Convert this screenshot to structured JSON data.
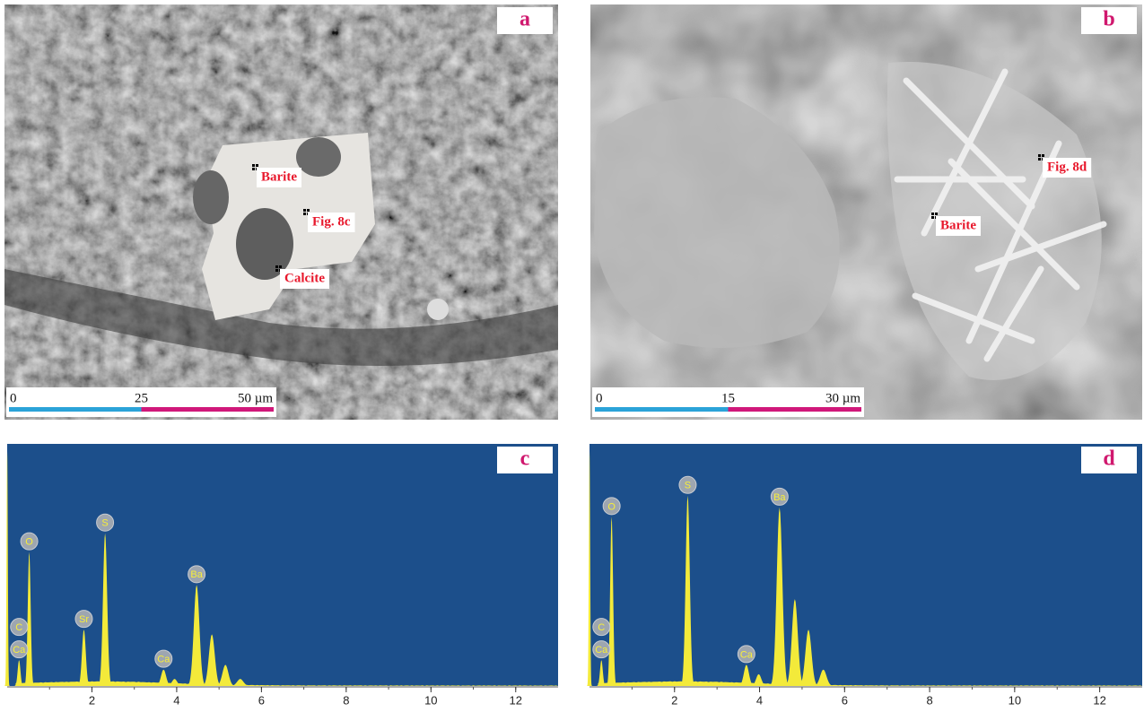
{
  "panels": [
    {
      "label": "a",
      "scale_bar": [
        "0",
        "25",
        "50 µm"
      ],
      "annotations": [
        "Barite",
        "Fig. 8c",
        "Calcite"
      ]
    },
    {
      "label": "b",
      "scale_bar": [
        "0",
        "15",
        "30 µm"
      ],
      "annotations": [
        "Fig. 8d",
        "Barite"
      ]
    }
  ],
  "chart_data": [
    {
      "type": "spectrum",
      "label": "c",
      "color": "#f3ea3a",
      "background": "#1c4f8b",
      "xlim": [
        0,
        13
      ],
      "xticks": [
        2,
        4,
        6,
        8,
        10,
        12
      ],
      "ylim": [
        0,
        100
      ],
      "x": [
        0.0,
        0.28,
        0.52,
        1.81,
        2.31,
        3.69,
        3.95,
        4.47,
        4.83,
        5.15,
        5.5
      ],
      "values": [
        100,
        11,
        57,
        24,
        65,
        7,
        3,
        43,
        22,
        9,
        3
      ],
      "peak_labels": [
        {
          "text": "C",
          "peak": 1
        },
        {
          "text": "Ca",
          "peak": 1
        },
        {
          "text": "O",
          "peak": 2
        },
        {
          "text": "Sr",
          "peak": 3
        },
        {
          "text": "S",
          "peak": 4
        },
        {
          "text": "Ca",
          "peak": 5
        },
        {
          "text": "Ba",
          "peak": 7
        }
      ]
    },
    {
      "type": "spectrum",
      "label": "d",
      "color": "#f3ea3a",
      "background": "#1c4f8b",
      "xlim": [
        0,
        13
      ],
      "xticks": [
        2,
        4,
        6,
        8,
        10,
        12
      ],
      "ylim": [
        0,
        100
      ],
      "x": [
        0.0,
        0.28,
        0.52,
        2.31,
        3.69,
        3.98,
        4.47,
        4.83,
        5.15,
        5.5
      ],
      "values": [
        100,
        11,
        72,
        81,
        9,
        5,
        76,
        37,
        24,
        7
      ],
      "peak_labels": [
        {
          "text": "C",
          "peak": 1
        },
        {
          "text": "Ca",
          "peak": 1
        },
        {
          "text": "O",
          "peak": 2
        },
        {
          "text": "S",
          "peak": 3
        },
        {
          "text": "Ca",
          "peak": 4
        },
        {
          "text": "Ba",
          "peak": 6
        }
      ]
    }
  ]
}
